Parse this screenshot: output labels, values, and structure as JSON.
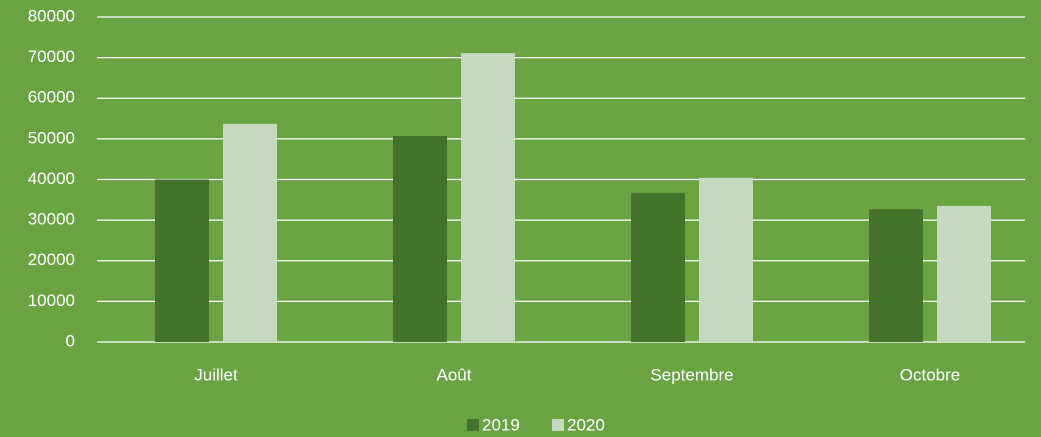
{
  "chart_data": {
    "type": "bar",
    "categories": [
      "Juillet",
      "Août",
      "Septembre",
      "Octobre"
    ],
    "series": [
      {
        "name": "2019",
        "color": "#46732b",
        "values": [
          40000,
          50700,
          36700,
          32700
        ]
      },
      {
        "name": "2020",
        "color": "#c5d9c0",
        "values": [
          53700,
          71100,
          40400,
          33500
        ]
      }
    ],
    "ylim": [
      0,
      80000
    ],
    "yticks": [
      0,
      10000,
      20000,
      30000,
      40000,
      50000,
      60000,
      70000,
      80000
    ],
    "grid": true,
    "legend": "bottom"
  }
}
